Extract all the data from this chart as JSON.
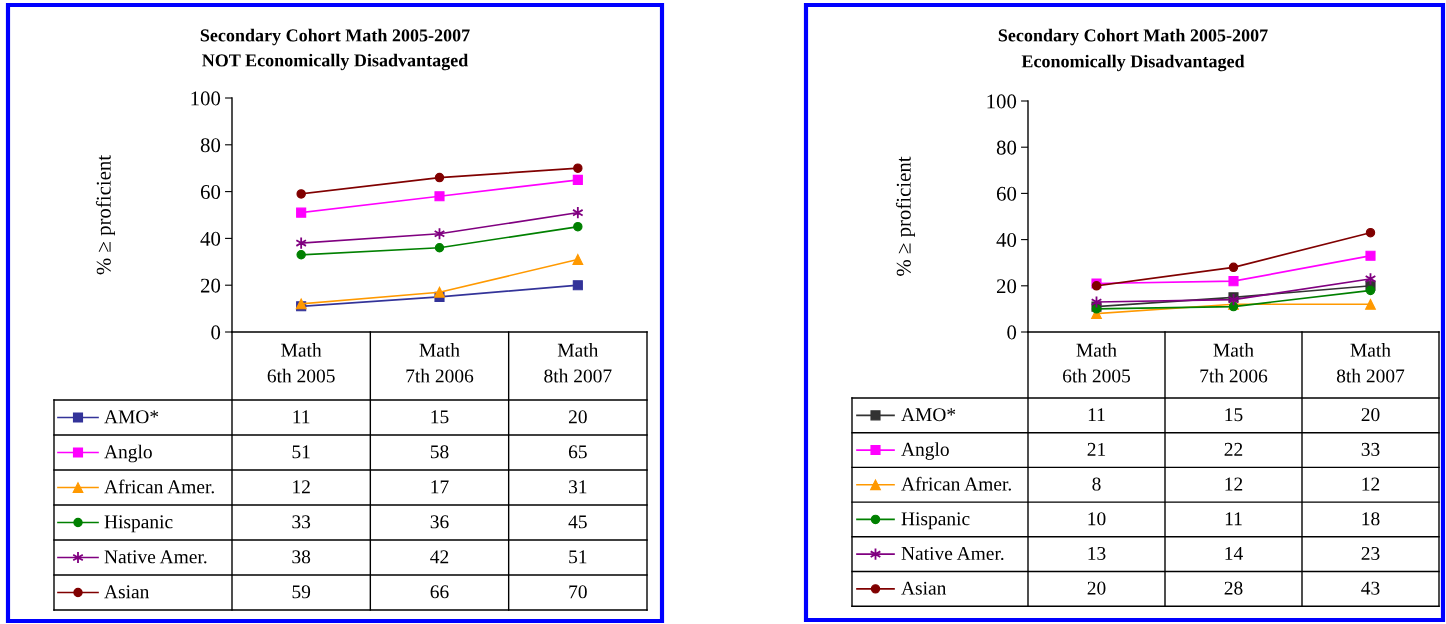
{
  "chart_data": [
    {
      "type": "line",
      "title": "Secondary Cohort Math 2005-2007",
      "subtitle": "NOT Economically Disadvantaged",
      "ylabel": "% ≥ proficient",
      "categories": [
        "Math\n6th 2005",
        "Math\n7th 2006",
        "Math\n8th 2007"
      ],
      "ylim": [
        0,
        100
      ],
      "yticks": [
        0,
        20,
        40,
        60,
        80,
        100
      ],
      "grid": false,
      "legend": "bottom",
      "data_labels": true,
      "line_style": "solid",
      "series": [
        {
          "name": "AMO*",
          "color": "#333399",
          "marker": "square",
          "values": [
            11,
            15,
            20
          ]
        },
        {
          "name": "Anglo",
          "color": "#ff00ff",
          "marker": "square",
          "values": [
            51,
            58,
            65
          ]
        },
        {
          "name": "African Amer.",
          "color": "#ff9900",
          "marker": "triangle",
          "values": [
            12,
            17,
            31
          ]
        },
        {
          "name": "Hispanic",
          "color": "#008000",
          "marker": "circle",
          "values": [
            33,
            36,
            45
          ]
        },
        {
          "name": "Native Amer.",
          "color": "#800080",
          "marker": "cross",
          "values": [
            38,
            42,
            51
          ]
        },
        {
          "name": "Asian",
          "color": "#800000",
          "marker": "circle",
          "values": [
            59,
            66,
            70
          ]
        }
      ]
    },
    {
      "type": "line",
      "title": "Secondary Cohort Math 2005-2007",
      "subtitle": "Economically Disadvantaged",
      "ylabel": "% ≥ proficient",
      "categories": [
        "Math\n6th 2005",
        "Math\n7th 2006",
        "Math\n8th 2007"
      ],
      "ylim": [
        0,
        100
      ],
      "yticks": [
        0,
        20,
        40,
        60,
        80,
        100
      ],
      "grid": false,
      "legend": "bottom",
      "data_labels": true,
      "line_style": "solid",
      "series": [
        {
          "name": "AMO*",
          "color": "#333333",
          "marker": "square",
          "values": [
            11,
            15,
            20
          ]
        },
        {
          "name": "Anglo",
          "color": "#ff00ff",
          "marker": "square",
          "values": [
            21,
            22,
            33
          ]
        },
        {
          "name": "African Amer.",
          "color": "#ff9900",
          "marker": "triangle",
          "values": [
            8,
            12,
            12
          ]
        },
        {
          "name": "Hispanic",
          "color": "#008000",
          "marker": "circle",
          "values": [
            10,
            11,
            18
          ]
        },
        {
          "name": "Native Amer.",
          "color": "#800080",
          "marker": "cross",
          "values": [
            13,
            14,
            23
          ]
        },
        {
          "name": "Asian",
          "color": "#800000",
          "marker": "circle",
          "values": [
            20,
            28,
            43
          ]
        }
      ]
    }
  ]
}
